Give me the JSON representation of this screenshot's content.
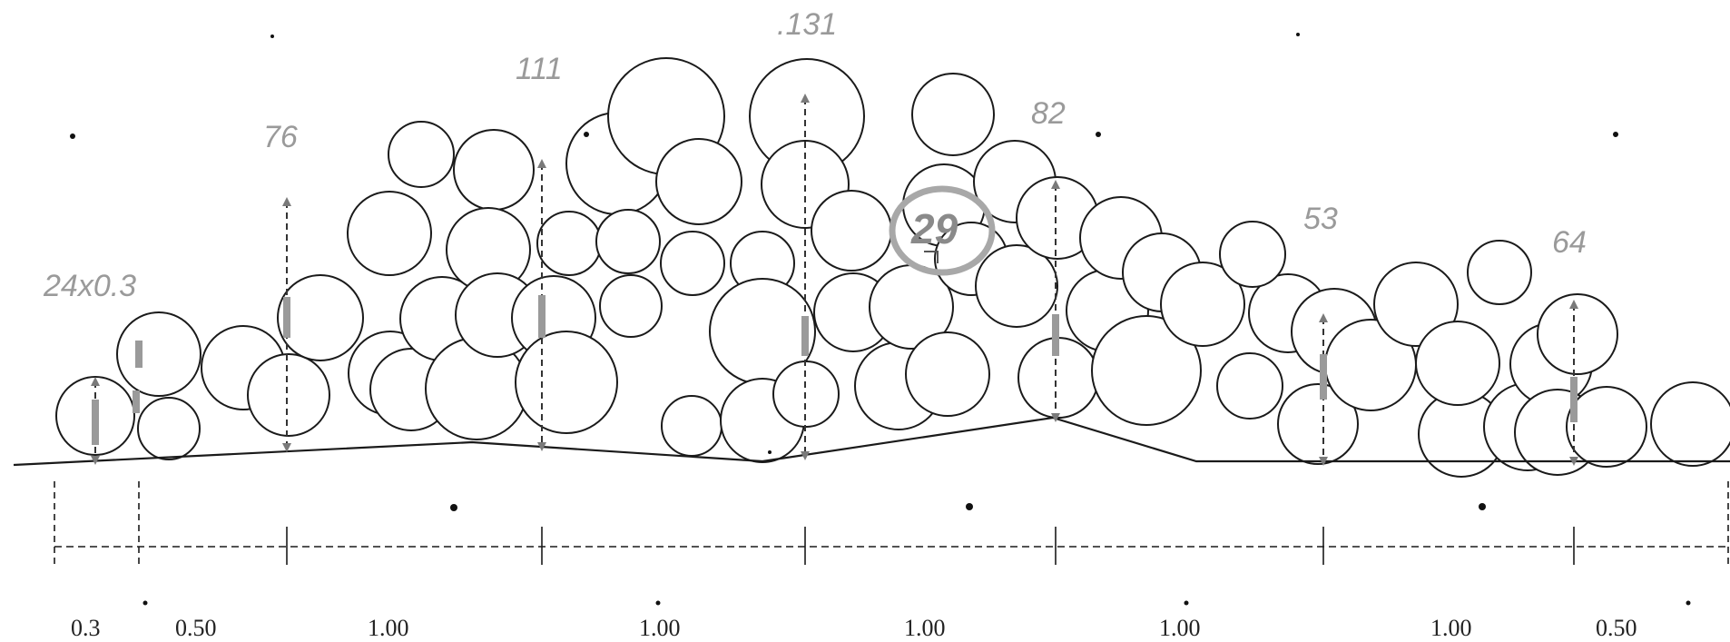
{
  "diagram": {
    "height_labels": [
      "24x0.3",
      "76",
      "111",
      ".131",
      "82",
      "53",
      "64"
    ],
    "badge_label": "29",
    "width_labels": [
      "0.3",
      "0.50",
      "1.00",
      "1.00",
      "1.00",
      "1.00",
      "1.00",
      "0.50"
    ]
  },
  "colors": {
    "label": "#9a9a9a",
    "line": "#1a1a1a",
    "arrow": "#9e9e9e"
  }
}
